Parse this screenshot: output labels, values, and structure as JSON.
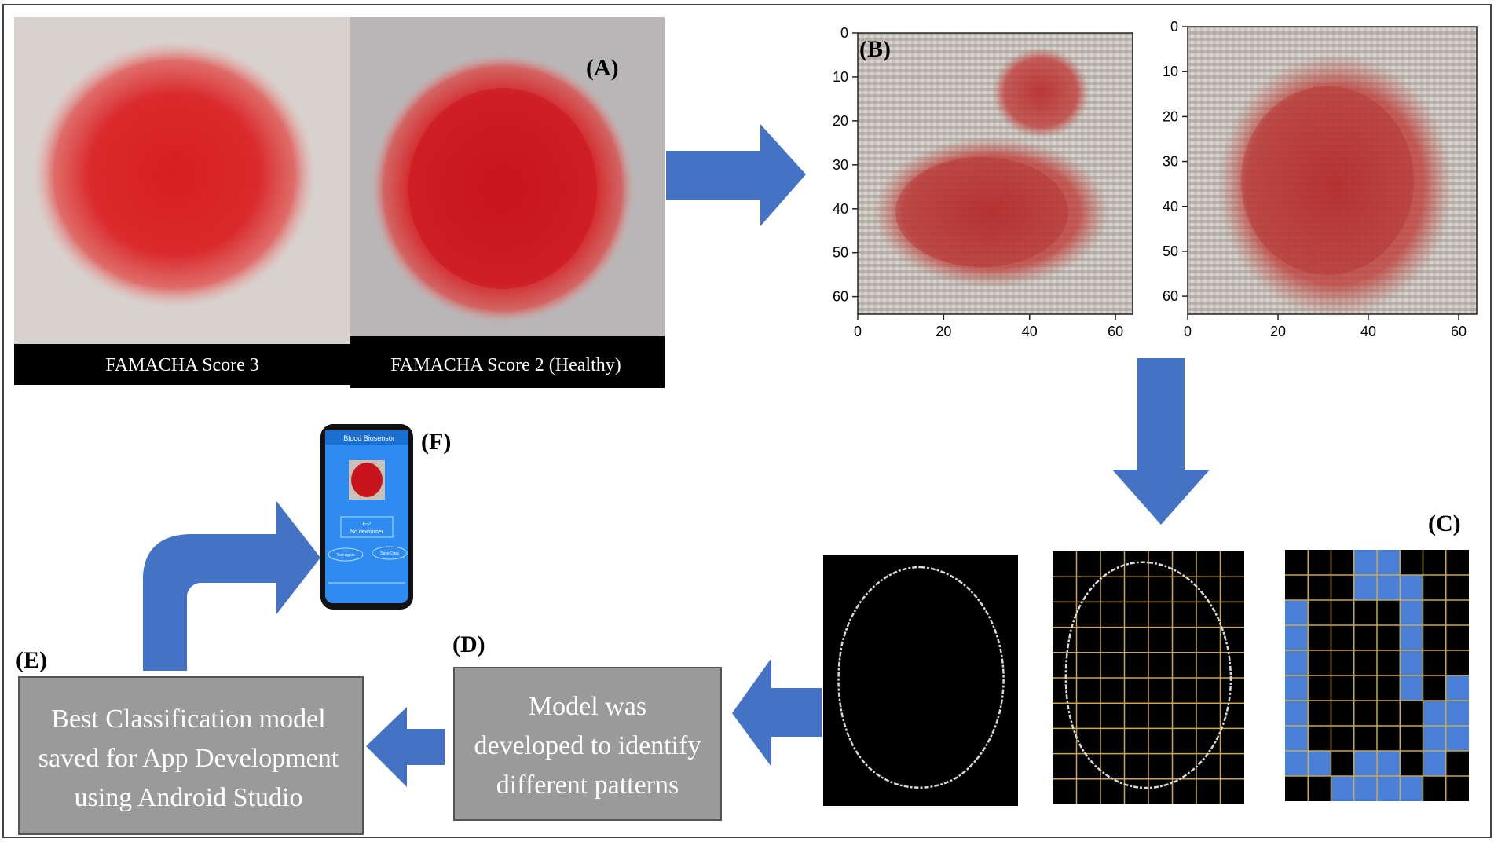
{
  "panels": {
    "a": {
      "tag": "(A)",
      "left_caption": "FAMACHA Score 3",
      "right_caption": "FAMACHA  Score 2 (Healthy)"
    },
    "b": {
      "tag": "(B)",
      "plot1": {
        "xticks": [
          "0",
          "20",
          "40",
          "60"
        ],
        "yticks": [
          "0",
          "10",
          "20",
          "30",
          "40",
          "50",
          "60"
        ]
      },
      "plot2": {
        "xticks": [
          "0",
          "20",
          "40",
          "60"
        ],
        "yticks": [
          "0",
          "10",
          "20",
          "30",
          "40",
          "50",
          "60"
        ]
      }
    },
    "c": {
      "tag": "(C)"
    },
    "d": {
      "tag": "(D)",
      "lines": [
        "Model was",
        "developed to identify",
        "different patterns"
      ]
    },
    "e": {
      "tag": "(E)",
      "lines": [
        "Best Classification model",
        "saved for App Development",
        "using Android Studio"
      ]
    },
    "f": {
      "tag": "(F)",
      "phone": {
        "app_title": "Blood Biosensor",
        "result_line1": "F-2",
        "result_line2": "No dewormer",
        "button_left": "Test Again",
        "button_right": "Save Data"
      }
    }
  },
  "colors": {
    "arrow": "#4472C4",
    "blood": "#D2262A",
    "grid": "#C8A84A",
    "cell": "#4A7FD8",
    "box": "#9A9A9A"
  },
  "grid_panel": {
    "cols": 8,
    "rows": 10,
    "cells_on": [
      [
        3,
        0
      ],
      [
        4,
        0
      ],
      [
        3,
        1
      ],
      [
        4,
        1
      ],
      [
        5,
        1
      ],
      [
        0,
        2
      ],
      [
        5,
        2
      ],
      [
        0,
        3
      ],
      [
        5,
        3
      ],
      [
        0,
        4
      ],
      [
        5,
        4
      ],
      [
        0,
        5
      ],
      [
        5,
        5
      ],
      [
        7,
        5
      ],
      [
        0,
        6
      ],
      [
        6,
        6
      ],
      [
        7,
        6
      ],
      [
        0,
        7
      ],
      [
        6,
        7
      ],
      [
        7,
        7
      ],
      [
        0,
        8
      ],
      [
        1,
        8
      ],
      [
        3,
        8
      ],
      [
        4,
        8
      ],
      [
        6,
        8
      ],
      [
        2,
        9
      ],
      [
        3,
        9
      ],
      [
        4,
        9
      ],
      [
        5,
        9
      ]
    ]
  }
}
